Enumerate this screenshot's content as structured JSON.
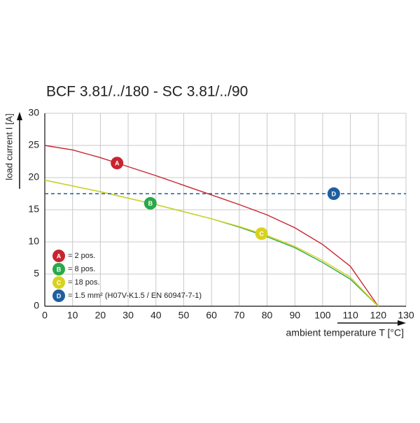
{
  "chart_data": {
    "type": "line",
    "title": "BCF 3.81/../180 - SC 3.81/../90",
    "y_label": "load current I [A]",
    "x_label": "ambient temperature T [°C]",
    "xlim": [
      0,
      130
    ],
    "xticks": [
      0,
      10,
      20,
      30,
      40,
      50,
      60,
      70,
      80,
      90,
      100,
      110,
      120,
      130
    ],
    "ylim": [
      0,
      30
    ],
    "yticks": [
      0,
      5,
      10,
      15,
      20,
      25,
      30
    ],
    "grid": true,
    "series": [
      {
        "marker": "A",
        "name": "= 2 pos.",
        "color": "#c8242f",
        "dashed": false,
        "x": [
          0,
          10,
          20,
          30,
          40,
          50,
          60,
          70,
          80,
          90,
          100,
          110,
          120
        ],
        "values": [
          25,
          24.3,
          23.1,
          21.7,
          20.3,
          18.8,
          17.3,
          15.8,
          14.2,
          12.2,
          9.6,
          6.2,
          0
        ]
      },
      {
        "marker": "B",
        "name": "= 8 pos.",
        "color": "#2aa84a",
        "dashed": false,
        "x": [
          0,
          10,
          20,
          30,
          40,
          50,
          60,
          70,
          80,
          90,
          100,
          110,
          120
        ],
        "values": [
          19.6,
          18.7,
          17.8,
          16.8,
          15.8,
          14.7,
          13.6,
          12.3,
          10.8,
          9.1,
          6.8,
          4.2,
          0
        ]
      },
      {
        "marker": "C",
        "name": "= 18 pos.",
        "color": "#d8d21e",
        "dashed": false,
        "x": [
          0,
          10,
          20,
          30,
          40,
          50,
          60,
          70,
          80,
          90,
          100,
          110,
          120
        ],
        "values": [
          19.6,
          18.7,
          17.8,
          16.8,
          15.8,
          14.7,
          13.6,
          12.4,
          11.0,
          9.3,
          7.1,
          4.5,
          0
        ]
      },
      {
        "marker": "D",
        "name": "= 1.5 mm² (H07V-K1.5 / EN 60947-7-1)",
        "color": "#1f5fa0",
        "dashed": true,
        "x": [
          0,
          130
        ],
        "values": [
          17.5,
          17.5
        ]
      }
    ]
  }
}
